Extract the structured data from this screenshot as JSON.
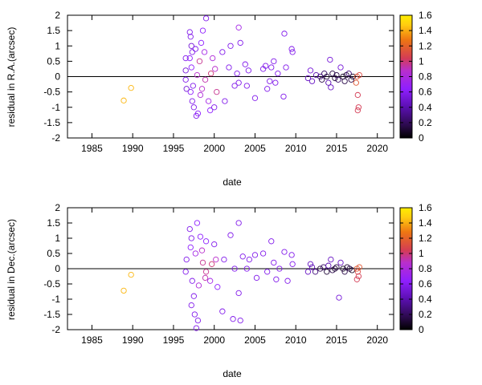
{
  "palette": [
    "#000000",
    "#2a0a4a",
    "#5a0fb0",
    "#8f1fff",
    "#b92fcc",
    "#d43c55",
    "#ee7612",
    "#ffcc10",
    "#ffee00"
  ],
  "cbmax": 1.6,
  "chart_data": [
    {
      "type": "scatter",
      "xlabel": "date",
      "ylabel": "residual in R.A.(arcsec)",
      "xlim": [
        1982,
        2022
      ],
      "ylim": [
        -2,
        2
      ],
      "x_ticks": [
        "1985",
        "1990",
        "1995",
        "2000",
        "2005",
        "2010",
        "2015",
        "2020"
      ],
      "y_ticks": [
        "-2",
        "-1.5",
        "-1",
        "-0.5",
        "0",
        "0.5",
        "1",
        "1.5",
        "2"
      ],
      "colorbar": {
        "range": [
          0,
          1.6
        ],
        "ticks": [
          "0",
          "0.2",
          "0.4",
          "0.6",
          "0.8",
          "1",
          "1.2",
          "1.4",
          "1.6"
        ]
      },
      "zero_line": true,
      "grid": false,
      "points": [
        [
          1988.9,
          -0.78,
          1.35
        ],
        [
          1989.8,
          -0.37,
          1.35
        ],
        [
          1997.0,
          1.45,
          0.55
        ],
        [
          1997.1,
          1.3,
          0.55
        ],
        [
          1997.2,
          1.0,
          0.5
        ],
        [
          1997.3,
          0.8,
          0.55
        ],
        [
          1997.0,
          0.6,
          0.6
        ],
        [
          1997.2,
          0.3,
          0.6
        ],
        [
          1997.4,
          -0.3,
          0.55
        ],
        [
          1997.1,
          -0.5,
          0.6
        ],
        [
          1997.3,
          -0.8,
          0.55
        ],
        [
          1997.5,
          -1.0,
          0.55
        ],
        [
          1997.8,
          -1.28,
          0.55
        ],
        [
          1996.5,
          0.6,
          0.55
        ],
        [
          1996.6,
          -0.4,
          0.5
        ],
        [
          1996.5,
          -0.1,
          0.55
        ],
        [
          1996.5,
          0.2,
          0.5
        ],
        [
          1998.0,
          -1.2,
          0.6
        ],
        [
          1998.6,
          1.5,
          0.6
        ],
        [
          1998.4,
          1.1,
          0.6
        ],
        [
          1999.0,
          1.9,
          0.55
        ],
        [
          1998.8,
          0.8,
          0.7
        ],
        [
          1998.2,
          0.5,
          0.9
        ],
        [
          1998.5,
          -0.4,
          0.8
        ],
        [
          1999.3,
          -0.8,
          0.7
        ],
        [
          1999.5,
          -1.1,
          0.6
        ],
        [
          2000.0,
          -1.0,
          0.55
        ],
        [
          1999.8,
          0.6,
          0.75
        ],
        [
          2000.1,
          0.25,
          0.8
        ],
        [
          2000.3,
          -0.5,
          0.9
        ],
        [
          1998.9,
          -0.1,
          0.85
        ],
        [
          1999.6,
          0.1,
          0.95
        ],
        [
          1997.7,
          0.9,
          0.55
        ],
        [
          1997.9,
          0.05,
          0.8
        ],
        [
          1998.3,
          -0.6,
          0.75
        ],
        [
          2001.0,
          0.8,
          0.55
        ],
        [
          2001.3,
          -0.8,
          0.55
        ],
        [
          2002.0,
          1.0,
          0.55
        ],
        [
          2001.8,
          0.3,
          0.55
        ],
        [
          2002.5,
          -0.3,
          0.55
        ],
        [
          2003.0,
          1.6,
          0.7
        ],
        [
          2003.2,
          1.1,
          0.55
        ],
        [
          2003.0,
          -0.2,
          0.55
        ],
        [
          2002.8,
          0.1,
          0.55
        ],
        [
          2003.8,
          0.4,
          0.55
        ],
        [
          2004.2,
          0.2,
          0.55
        ],
        [
          2004.0,
          -0.3,
          0.55
        ],
        [
          2005.0,
          -0.7,
          0.55
        ],
        [
          2006.0,
          0.25,
          0.55
        ],
        [
          2006.3,
          0.35,
          0.55
        ],
        [
          2006.5,
          -0.4,
          0.55
        ],
        [
          2006.8,
          -0.15,
          0.55
        ],
        [
          2007.0,
          0.3,
          0.55
        ],
        [
          2007.3,
          0.5,
          0.55
        ],
        [
          2007.5,
          -0.2,
          0.55
        ],
        [
          2007.8,
          0.1,
          0.55
        ],
        [
          2008.5,
          -0.65,
          0.55
        ],
        [
          2008.6,
          1.4,
          0.55
        ],
        [
          2008.8,
          0.3,
          0.55
        ],
        [
          2009.5,
          0.9,
          0.55
        ],
        [
          2009.6,
          0.8,
          0.55
        ],
        [
          2011.5,
          -0.05,
          0.45
        ],
        [
          2011.8,
          0.2,
          0.5
        ],
        [
          2012.0,
          -0.15,
          0.45
        ],
        [
          2012.5,
          0.05,
          0.4
        ],
        [
          2013.0,
          0.0,
          0.3
        ],
        [
          2013.2,
          -0.1,
          0.2
        ],
        [
          2013.5,
          0.1,
          0.25
        ],
        [
          2013.8,
          0.0,
          0.15
        ],
        [
          2014.0,
          -0.2,
          0.4
        ],
        [
          2014.2,
          0.55,
          0.5
        ],
        [
          2014.3,
          -0.35,
          0.45
        ],
        [
          2014.5,
          0.1,
          0.2
        ],
        [
          2014.8,
          -0.05,
          0.15
        ],
        [
          2015.0,
          0.05,
          0.2
        ],
        [
          2015.2,
          -0.1,
          0.25
        ],
        [
          2015.5,
          0.3,
          0.5
        ],
        [
          2015.8,
          0.0,
          0.1
        ],
        [
          2016.0,
          -0.15,
          0.2
        ],
        [
          2016.2,
          0.05,
          0.15
        ],
        [
          2016.5,
          0.1,
          0.3
        ],
        [
          2016.8,
          -0.1,
          0.2
        ],
        [
          2017.0,
          0.0,
          0.1
        ],
        [
          2017.5,
          0.0,
          1.1
        ],
        [
          2017.6,
          -0.6,
          1.0
        ],
        [
          2017.7,
          -1.0,
          1.0
        ],
        [
          2017.6,
          -1.1,
          1.0
        ],
        [
          2017.4,
          -0.2,
          1.1
        ],
        [
          2017.8,
          0.05,
          1.05
        ]
      ]
    },
    {
      "type": "scatter",
      "xlabel": "date",
      "ylabel": "residual in Dec.(arcsec)",
      "xlim": [
        1982,
        2022
      ],
      "ylim": [
        -2,
        2
      ],
      "x_ticks": [
        "1985",
        "1990",
        "1995",
        "2000",
        "2005",
        "2010",
        "2015",
        "2020"
      ],
      "y_ticks": [
        "-2",
        "-1.5",
        "-1",
        "-0.5",
        "0",
        "0.5",
        "1",
        "1.5",
        "2"
      ],
      "colorbar": {
        "range": [
          0,
          1.6
        ],
        "ticks": [
          "0",
          "0.2",
          "0.4",
          "0.6",
          "0.8",
          "1",
          "1.2",
          "1.4",
          "1.6"
        ]
      },
      "zero_line": true,
      "grid": false,
      "points": [
        [
          1988.9,
          -0.72,
          1.35
        ],
        [
          1989.8,
          -0.2,
          1.35
        ],
        [
          1997.0,
          1.3,
          0.55
        ],
        [
          1997.2,
          1.0,
          0.55
        ],
        [
          1997.1,
          0.7,
          0.6
        ],
        [
          1996.6,
          0.3,
          0.55
        ],
        [
          1996.5,
          -0.1,
          0.55
        ],
        [
          1997.3,
          -0.4,
          0.55
        ],
        [
          1997.5,
          -0.9,
          0.55
        ],
        [
          1997.2,
          -1.2,
          0.55
        ],
        [
          1997.6,
          -1.5,
          0.55
        ],
        [
          1997.8,
          -1.95,
          0.55
        ],
        [
          1998.0,
          -1.7,
          0.55
        ],
        [
          1997.9,
          1.5,
          0.6
        ],
        [
          1998.3,
          1.05,
          0.6
        ],
        [
          1998.5,
          0.6,
          0.8
        ],
        [
          1998.6,
          0.2,
          0.9
        ],
        [
          1998.9,
          -0.3,
          0.85
        ],
        [
          1999.0,
          0.9,
          0.6
        ],
        [
          1999.5,
          -0.4,
          0.7
        ],
        [
          2000.0,
          0.8,
          0.55
        ],
        [
          2000.2,
          0.3,
          0.8
        ],
        [
          2000.4,
          -0.6,
          0.6
        ],
        [
          1999.7,
          0.15,
          0.95
        ],
        [
          1999.0,
          -0.1,
          0.9
        ],
        [
          1998.1,
          -0.55,
          0.75
        ],
        [
          1997.7,
          0.5,
          0.7
        ],
        [
          2001.0,
          -1.4,
          0.55
        ],
        [
          2001.2,
          0.3,
          0.55
        ],
        [
          2002.0,
          1.1,
          0.55
        ],
        [
          2002.3,
          -1.65,
          0.55
        ],
        [
          2002.5,
          0.0,
          0.55
        ],
        [
          2003.0,
          1.5,
          0.55
        ],
        [
          2003.2,
          -1.7,
          0.55
        ],
        [
          2003.0,
          -0.8,
          0.55
        ],
        [
          2003.5,
          0.4,
          0.55
        ],
        [
          2004.0,
          0.0,
          0.55
        ],
        [
          2004.3,
          0.3,
          0.55
        ],
        [
          2005.0,
          0.45,
          0.55
        ],
        [
          2005.2,
          -0.3,
          0.55
        ],
        [
          2006.0,
          0.5,
          0.55
        ],
        [
          2006.5,
          -0.1,
          0.55
        ],
        [
          2007.0,
          0.9,
          0.55
        ],
        [
          2007.3,
          0.2,
          0.55
        ],
        [
          2007.6,
          -0.35,
          0.55
        ],
        [
          2008.0,
          0.0,
          0.55
        ],
        [
          2008.6,
          0.55,
          0.55
        ],
        [
          2009.0,
          -0.4,
          0.55
        ],
        [
          2009.5,
          0.45,
          0.55
        ],
        [
          2009.6,
          0.15,
          0.55
        ],
        [
          2011.5,
          -0.1,
          0.45
        ],
        [
          2011.8,
          0.15,
          0.45
        ],
        [
          2012.0,
          0.05,
          0.4
        ],
        [
          2012.4,
          -0.1,
          0.3
        ],
        [
          2013.0,
          0.0,
          0.2
        ],
        [
          2013.4,
          0.05,
          0.25
        ],
        [
          2013.8,
          -0.1,
          0.15
        ],
        [
          2014.0,
          0.1,
          0.4
        ],
        [
          2014.3,
          0.3,
          0.45
        ],
        [
          2014.5,
          -0.05,
          0.2
        ],
        [
          2014.8,
          0.0,
          0.15
        ],
        [
          2015.0,
          0.05,
          0.2
        ],
        [
          2015.3,
          -0.95,
          0.5
        ],
        [
          2015.5,
          0.2,
          0.45
        ],
        [
          2015.8,
          0.0,
          0.1
        ],
        [
          2016.0,
          -0.1,
          0.2
        ],
        [
          2016.3,
          0.05,
          0.15
        ],
        [
          2016.6,
          0.0,
          0.2
        ],
        [
          2016.9,
          -0.05,
          0.1
        ],
        [
          2017.5,
          0.0,
          1.1
        ],
        [
          2017.6,
          -0.1,
          1.05
        ],
        [
          2017.7,
          -0.25,
          1.0
        ],
        [
          2017.5,
          -0.35,
          1.0
        ],
        [
          2017.8,
          0.05,
          1.1
        ]
      ]
    }
  ]
}
